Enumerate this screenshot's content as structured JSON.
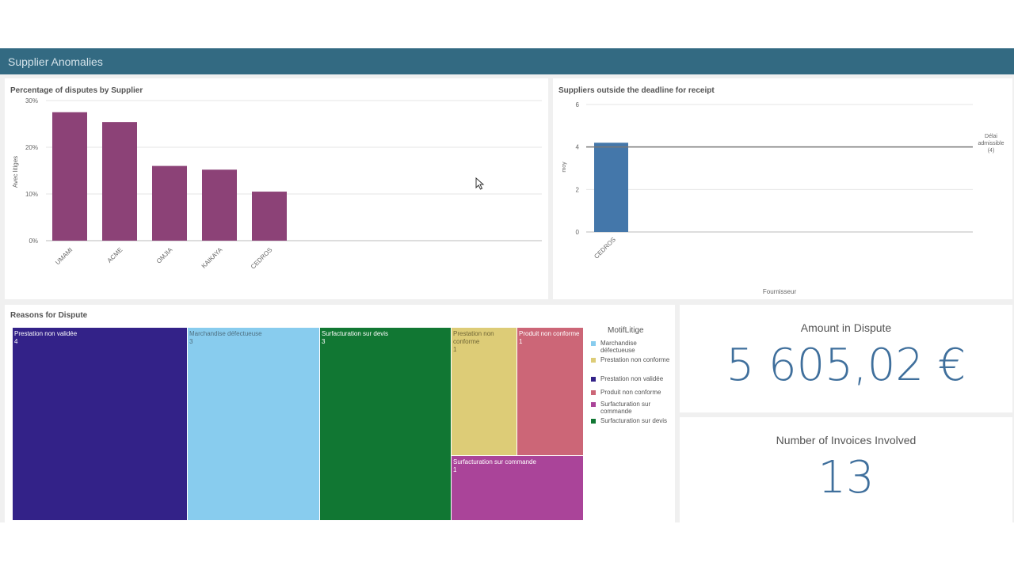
{
  "app": {
    "title": "Supplier Anomalies"
  },
  "disputes_chart": {
    "title": "Percentage of disputes by Supplier",
    "chart_data": {
      "type": "bar",
      "title": "Percentage of disputes by Supplier",
      "ylabel": "Avec litiges",
      "categories": [
        "UMAMI",
        "ACME",
        "OMJIA",
        "KAIKAYA",
        "CEDROS"
      ],
      "values": [
        27.5,
        25.4,
        16.0,
        15.2,
        10.5
      ],
      "ylim": [
        0,
        30
      ],
      "yticks": [
        "0%",
        "10%",
        "20%",
        "30%"
      ],
      "color": "#8c4277"
    }
  },
  "deadline_chart": {
    "title": "Suppliers outside the deadline for receipt",
    "chart_data": {
      "type": "bar",
      "title": "Suppliers outside the deadline for receipt",
      "ylabel": "moy",
      "xlabel": "Fournisseur",
      "categories": [
        "CEDROS"
      ],
      "values": [
        4.2
      ],
      "ylim": [
        0,
        6
      ],
      "yticks": [
        "0",
        "2",
        "4",
        "6"
      ],
      "reference_line": {
        "value": 4,
        "label": [
          "Délai",
          "admissible",
          "(4)"
        ]
      },
      "color": "#4477aa"
    }
  },
  "reasons": {
    "title": "Reasons for Dispute",
    "cells": [
      {
        "label": "Prestation non validée",
        "value": "4",
        "color": "#332288"
      },
      {
        "label": "Marchandise défectueuse",
        "value": "3",
        "color": "#88ccee"
      },
      {
        "label": "Surfacturation sur devis",
        "value": "3",
        "color": "#117733"
      },
      {
        "label": "Prestation non conforme",
        "value": "1",
        "color": "#ddcc77"
      },
      {
        "label": "Produit non conforme",
        "value": "1",
        "color": "#cc6677"
      },
      {
        "label": "Surfacturation sur commande",
        "value": "1",
        "color": "#aa4499"
      }
    ],
    "legend_title": "MotifLitige",
    "legend": [
      {
        "label": "Marchandise défectueuse",
        "color": "#88ccee"
      },
      {
        "label": "Prestation non conforme",
        "color": "#ddcc77"
      },
      {
        "label": "Prestation non validée",
        "color": "#332288"
      },
      {
        "label": "Produit non conforme",
        "color": "#cc6677"
      },
      {
        "label": "Surfacturation sur commande",
        "color": "#aa4499"
      },
      {
        "label": "Surfacturation sur devis",
        "color": "#117733"
      }
    ]
  },
  "kpi_amount": {
    "label": "Amount in Dispute",
    "value": "5 605,02 €"
  },
  "kpi_invoices": {
    "label": "Number of Invoices Involved",
    "value": "13"
  }
}
